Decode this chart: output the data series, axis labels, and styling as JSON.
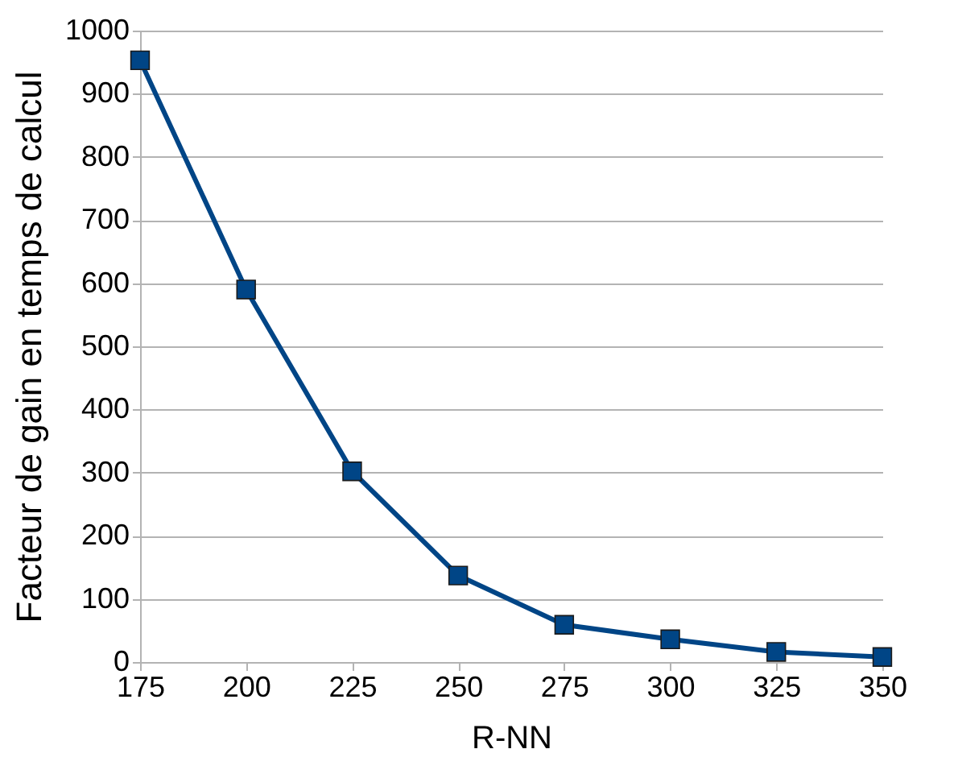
{
  "chart_data": {
    "type": "line",
    "xlabel": "R-NN",
    "ylabel": "Facteur de gain en temps de calcul",
    "x": [
      175,
      200,
      225,
      250,
      275,
      300,
      325,
      350
    ],
    "series": [
      {
        "color": "#004586",
        "values": [
          953,
          590,
          302,
          137,
          59,
          36,
          16,
          8
        ]
      }
    ],
    "xlim": [
      175,
      350
    ],
    "xticks": [
      175,
      200,
      225,
      250,
      275,
      300,
      325,
      350
    ],
    "ylim": [
      0,
      1000
    ],
    "yticks": [
      0,
      100,
      200,
      300,
      400,
      500,
      600,
      700,
      800,
      900,
      1000
    ],
    "grid": "y",
    "marker": "square",
    "line_style": "solid",
    "legend": false
  }
}
